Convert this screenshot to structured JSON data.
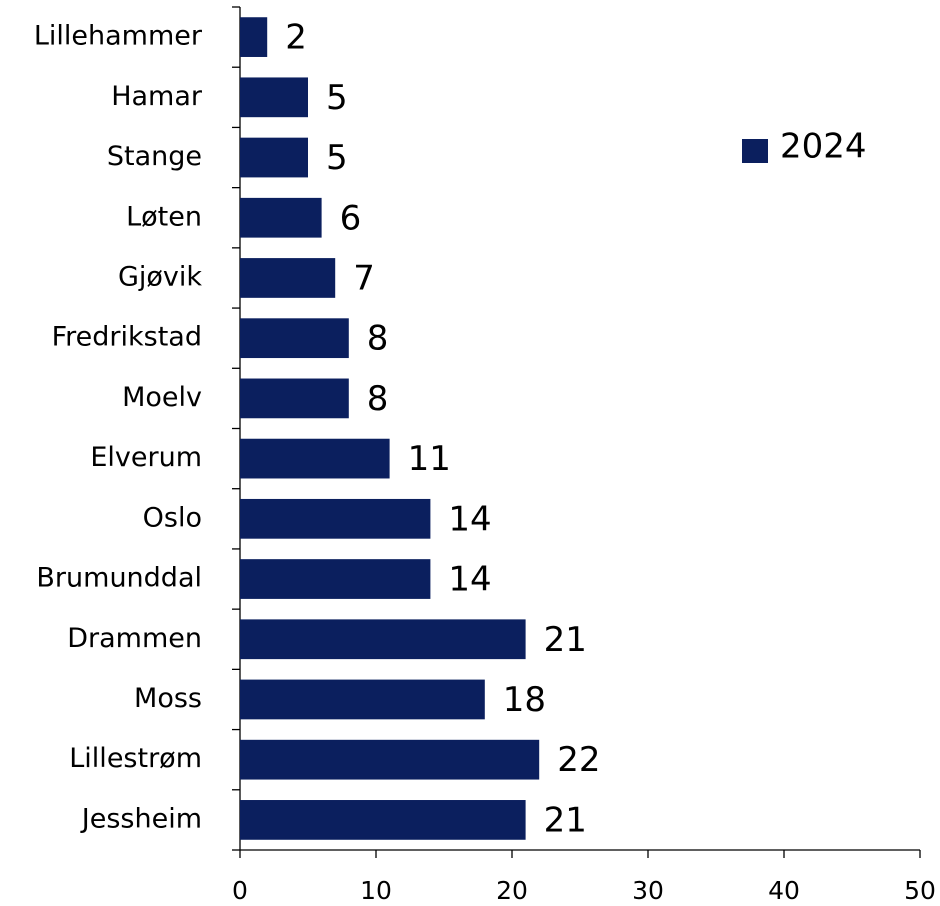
{
  "chart_data": {
    "type": "bar",
    "orientation": "horizontal",
    "categories": [
      "Lillehammer",
      "Hamar",
      "Stange",
      "Løten",
      "Gjøvik",
      "Fredrikstad",
      "Moelv",
      "Elverum",
      "Oslo",
      "Brumunddal",
      "Drammen",
      "Moss",
      "Lillestrøm",
      "Jessheim"
    ],
    "series": [
      {
        "name": "2024",
        "color": "#0b1f5e",
        "values": [
          2,
          5,
          5,
          6,
          7,
          8,
          8,
          11,
          14,
          14,
          21,
          18,
          22,
          21
        ]
      }
    ],
    "xlim": [
      0,
      50
    ],
    "xticks": [
      0,
      10,
      20,
      30,
      40,
      50
    ],
    "legend": "upper right"
  }
}
